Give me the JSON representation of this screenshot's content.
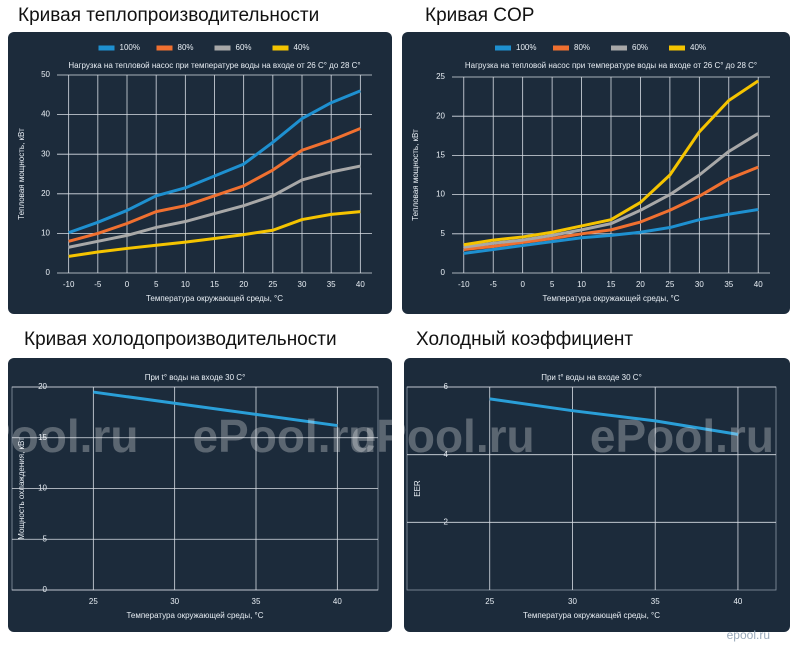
{
  "chart_data": [
    {
      "type": "line",
      "title": "Кривая теплопроизводительности",
      "subtitle": "Нагрузка на тепловой насос при температуре воды на входе от 26 C° до 28 C°",
      "xlabel": "Температура окружающей среды, °C",
      "ylabel": "Тепловая мощность, кВт",
      "x": [
        -10,
        -5,
        0,
        5,
        10,
        15,
        20,
        25,
        30,
        35,
        40
      ],
      "xlim": [
        -12,
        42
      ],
      "xticks": [
        -10,
        -5,
        0,
        5,
        10,
        15,
        20,
        25,
        30,
        35,
        40
      ],
      "ylim": [
        0,
        50
      ],
      "yticks": [
        0,
        10,
        20,
        30,
        40,
        50
      ],
      "grid": true,
      "series": [
        {
          "name": "100%",
          "color": "#1e90d0",
          "values": [
            10.2,
            12.8,
            15.8,
            19.5,
            21.5,
            24.5,
            27.5,
            33,
            39,
            43,
            46
          ]
        },
        {
          "name": "80%",
          "color": "#f07030",
          "values": [
            8,
            10,
            12.5,
            15.5,
            17,
            19.5,
            22,
            26,
            31,
            33.5,
            36.5
          ]
        },
        {
          "name": "60%",
          "color": "#a8a8a8",
          "values": [
            6.5,
            8,
            9.5,
            11.5,
            13,
            15,
            17,
            19.5,
            23.5,
            25.5,
            27
          ]
        },
        {
          "name": "40%",
          "color": "#f5c400",
          "values": [
            4.2,
            5.3,
            6.2,
            7,
            7.8,
            8.7,
            9.7,
            10.8,
            13.5,
            14.8,
            15.5
          ]
        }
      ]
    },
    {
      "type": "line",
      "title": "Кривая COP",
      "subtitle": "Нагрузка на тепловой насос при температуре воды на входе от 26 C° до 28 C°",
      "xlabel": "Температура окружающей среды, °C",
      "ylabel": "Тепловая мощность, кВт",
      "x": [
        -10,
        -5,
        0,
        5,
        10,
        15,
        20,
        25,
        30,
        35,
        40
      ],
      "xlim": [
        -12,
        42
      ],
      "xticks": [
        -10,
        -5,
        0,
        5,
        10,
        15,
        20,
        25,
        30,
        35,
        40
      ],
      "ylim": [
        0,
        25
      ],
      "yticks": [
        0,
        5,
        10,
        15,
        20,
        25
      ],
      "grid": true,
      "series": [
        {
          "name": "100%",
          "color": "#1e90d0",
          "values": [
            2.5,
            3,
            3.5,
            4,
            4.5,
            4.8,
            5.2,
            5.8,
            6.8,
            7.5,
            8.1
          ]
        },
        {
          "name": "80%",
          "color": "#f07030",
          "values": [
            3,
            3.4,
            3.9,
            4.4,
            5,
            5.5,
            6.5,
            8,
            9.8,
            12,
            13.5
          ]
        },
        {
          "name": "60%",
          "color": "#a8a8a8",
          "values": [
            3.3,
            3.8,
            4.2,
            4.8,
            5.5,
            6.3,
            8,
            10,
            12.5,
            15.5,
            17.8
          ]
        },
        {
          "name": "40%",
          "color": "#f5c400",
          "values": [
            3.6,
            4.2,
            4.6,
            5.2,
            6,
            6.8,
            9,
            12.5,
            18,
            22,
            24.5
          ]
        }
      ]
    },
    {
      "type": "line",
      "title": "Кривая холодопроизводительности",
      "subtitle": "При t° воды на входе 30 C°",
      "xlabel": "Температура окружающей среды, °C",
      "ylabel": "Мощность охлаждения, кВт",
      "x": [
        25,
        30,
        35,
        40
      ],
      "xlim": [
        20,
        42.5
      ],
      "xticks": [
        25,
        30,
        35,
        40
      ],
      "ylim": [
        0,
        20
      ],
      "yticks": [
        0,
        5,
        10,
        15,
        20
      ],
      "grid": true,
      "color": "#2a9fd8",
      "values": [
        19.5,
        18.4,
        17.3,
        16.2
      ]
    },
    {
      "type": "line",
      "title": "Холодный коэффициент",
      "subtitle": "При t° воды на входе 30 C°",
      "xlabel": "Температура окружающей среды, °C",
      "ylabel": "EER",
      "x": [
        25,
        30,
        35,
        40
      ],
      "xlim": [
        20,
        42.3
      ],
      "xticks": [
        25,
        30,
        35,
        40
      ],
      "ylim": [
        0,
        6
      ],
      "yticks": [
        2,
        4,
        6
      ],
      "grid": true,
      "color": "#2a9fd8",
      "values": [
        5.65,
        5.3,
        5.0,
        4.6
      ]
    }
  ],
  "watermark": "ePool.ru",
  "corner_mark": "epool.ru"
}
